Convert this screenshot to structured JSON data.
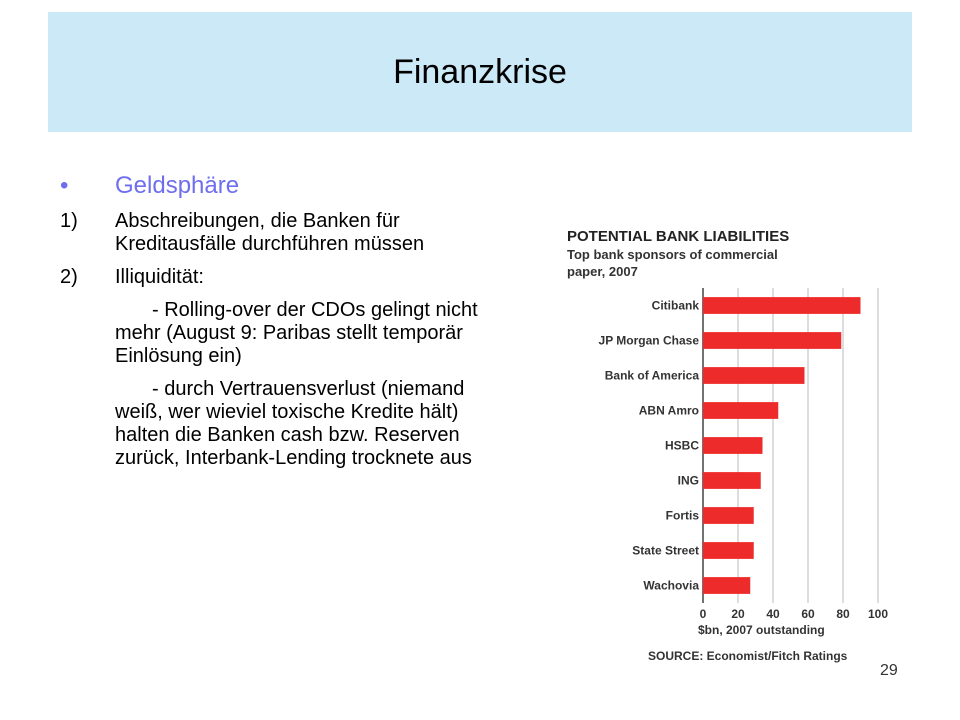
{
  "slide": {
    "title": "Finanzkrise",
    "bullet": "Geldsphäre",
    "items": [
      {
        "num": "1)",
        "text": "Abschreibungen, die Banken für Kreditausfälle durchführen müssen"
      },
      {
        "num": "2)",
        "text": "Illiquidität:"
      }
    ],
    "paragraphs": [
      "- Rolling-over der CDOs gelingt nicht mehr (August 9: Paribas stellt temporär Einlösung ein)",
      "- durch Vertrauensverlust (niemand weiß, wer wieviel toxische Kredite hält) halten die Banken cash bzw. Reserven zurück, Interbank-Lending trocknete aus"
    ],
    "slide_number": "29"
  },
  "chart_data": {
    "type": "bar",
    "orientation": "horizontal",
    "title": "POTENTIAL BANK LIABILITIES",
    "subtitle": "Top bank sponsors of commercial paper, 2007",
    "categories": [
      "Citibank",
      "JP Morgan Chase",
      "Bank of America",
      "ABN Amro",
      "HSBC",
      "ING",
      "Fortis",
      "State Street",
      "Wachovia"
    ],
    "values": [
      90,
      79,
      58,
      43,
      34,
      33,
      29,
      29,
      27
    ],
    "xlabel": "$bn, 2007 outstanding",
    "xticks": [
      "0",
      "20",
      "40",
      "60",
      "80",
      "100"
    ],
    "xlim": [
      0,
      100
    ],
    "source": "SOURCE: Economist/Fitch Ratings",
    "bar_color": "#ee2b2b",
    "grid": true
  }
}
